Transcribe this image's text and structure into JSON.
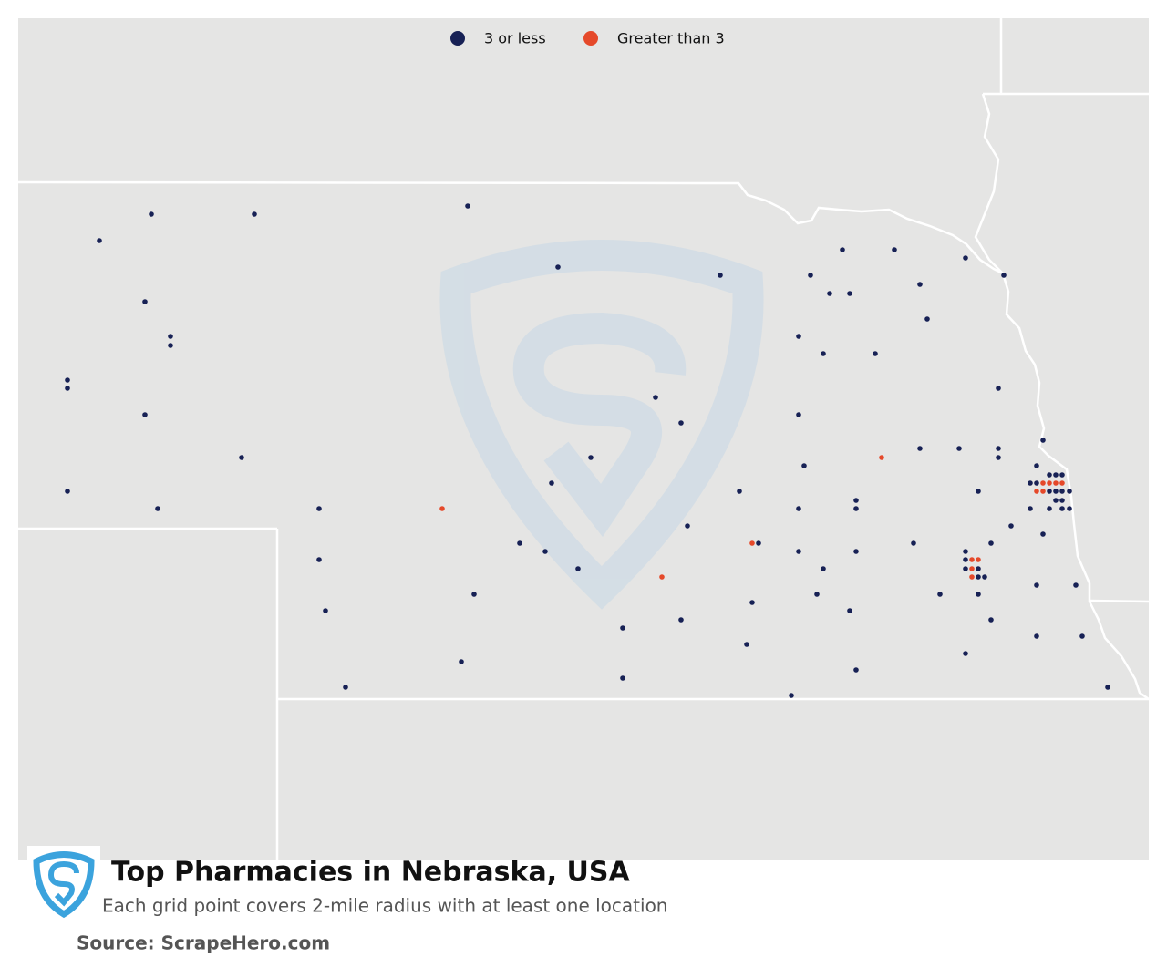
{
  "legend": {
    "items": [
      {
        "label": "3 or less",
        "color": "#172155"
      },
      {
        "label": "Greater than 3",
        "color": "#e5492a"
      }
    ]
  },
  "footer": {
    "title": "Top Pharmacies in Nebraska, USA",
    "subtitle": "Each grid point covers 2-mile radius with at least one location",
    "source": "Source: ScrapeHero.com"
  }
}
